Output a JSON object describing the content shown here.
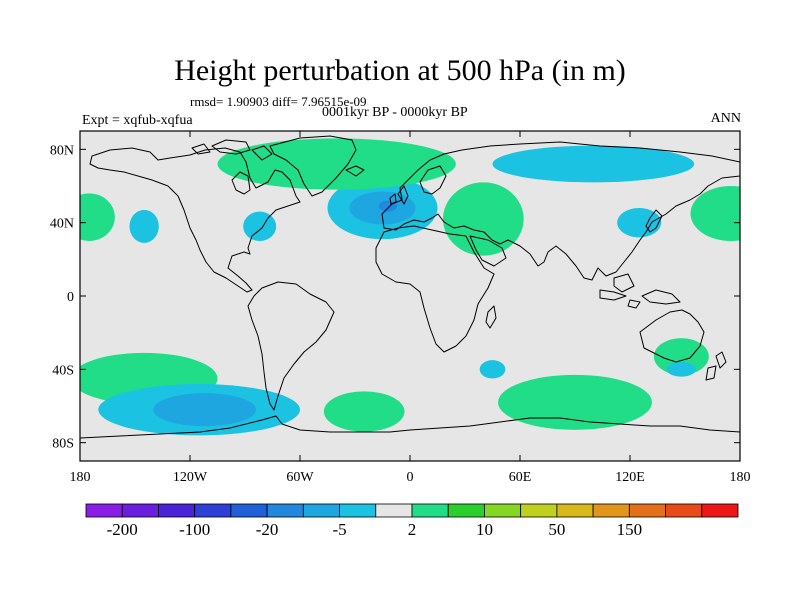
{
  "title": "Height perturbation at 500 hPa (in m)",
  "stats_text": "rmsd= 1.90903 diff= 7.96515e-09",
  "period": "0001kyr BP - 0000kyr BP",
  "experiment": "Expt = xqfub-xqfua",
  "season": "ANN",
  "lat_labels": [
    {
      "lat": 80,
      "label": "80N"
    },
    {
      "lat": 40,
      "label": "40N"
    },
    {
      "lat": 0,
      "label": "0"
    },
    {
      "lat": -40,
      "label": "40S"
    },
    {
      "lat": -80,
      "label": "80S"
    }
  ],
  "lon_labels": [
    {
      "lon": -180,
      "label": "180"
    },
    {
      "lon": -120,
      "label": "120W"
    },
    {
      "lon": -60,
      "label": "60W"
    },
    {
      "lon": 0,
      "label": "0"
    },
    {
      "lon": 60,
      "label": "60E"
    },
    {
      "lon": 120,
      "label": "120E"
    },
    {
      "lon": 180,
      "label": "180"
    }
  ],
  "colorbar": {
    "colors": [
      "#8a1de8",
      "#6a1fe0",
      "#4a23d8",
      "#2c3fd6",
      "#1f5fd8",
      "#2288dd",
      "#1ea6e0",
      "#1cc2e2",
      "#e6e6e6",
      "#22dd88",
      "#2bcf2b",
      "#86d624",
      "#c0d01e",
      "#d8b81a",
      "#e0961a",
      "#e4701a",
      "#e84a18",
      "#ec1818"
    ],
    "labels": [
      {
        "after_box": 1,
        "text": "-200"
      },
      {
        "after_box": 3,
        "text": "-100"
      },
      {
        "after_box": 5,
        "text": "-20"
      },
      {
        "after_box": 7,
        "text": "-5"
      },
      {
        "after_box": 9,
        "text": "2"
      },
      {
        "after_box": 11,
        "text": "10"
      },
      {
        "after_box": 13,
        "text": "50"
      },
      {
        "after_box": 15,
        "text": "150"
      }
    ]
  },
  "colors": {
    "land_sea_fill": "#e6e6e6",
    "weak_positive": "#22dd88",
    "positive": "#2bcf2b",
    "weak_negative": "#1cc2e2",
    "negative": "#1ea6e0",
    "strong_negative": "#2288dd"
  },
  "anomalies": [
    {
      "id": "atlantic-low",
      "center": [
        -15,
        48
      ],
      "radius": [
        30,
        17
      ],
      "level": "weak_negative"
    },
    {
      "id": "atlantic-low-core",
      "center": [
        -15,
        48
      ],
      "radius": [
        18,
        9
      ],
      "level": "negative"
    },
    {
      "id": "atlantic-low-innermost",
      "center": [
        -12,
        49
      ],
      "radius": [
        5,
        3
      ],
      "level": "strong_negative"
    },
    {
      "id": "greenland-high",
      "center": [
        -40,
        72
      ],
      "radius": [
        65,
        14
      ],
      "level": "weak_positive"
    },
    {
      "id": "europe-high",
      "center": [
        40,
        42
      ],
      "radius": [
        22,
        20
      ],
      "level": "weak_positive"
    },
    {
      "id": "siberia-low",
      "center": [
        100,
        72
      ],
      "radius": [
        55,
        10
      ],
      "level": "weak_negative"
    },
    {
      "id": "east-asia-low",
      "center": [
        125,
        40
      ],
      "radius": [
        12,
        8
      ],
      "level": "weak_negative"
    },
    {
      "id": "pacific-high",
      "center": [
        175,
        45
      ],
      "radius": [
        22,
        15
      ],
      "level": "weak_positive"
    },
    {
      "id": "pacific-high-west-edge",
      "center": [
        -175,
        43
      ],
      "radius": [
        14,
        13
      ],
      "level": "weak_positive"
    },
    {
      "id": "north-pacific-low",
      "center": [
        -145,
        38
      ],
      "radius": [
        8,
        9
      ],
      "level": "weak_negative"
    },
    {
      "id": "us-low",
      "center": [
        -82,
        38
      ],
      "radius": [
        9,
        8
      ],
      "level": "weak_negative"
    },
    {
      "id": "south-pacific-high",
      "center": [
        -145,
        -45
      ],
      "radius": [
        40,
        14
      ],
      "level": "weak_positive"
    },
    {
      "id": "south-pacific-low",
      "center": [
        -115,
        -62
      ],
      "radius": [
        55,
        14
      ],
      "level": "weak_negative"
    },
    {
      "id": "south-pacific-low-core",
      "center": [
        -112,
        -62
      ],
      "radius": [
        28,
        9
      ],
      "level": "negative"
    },
    {
      "id": "south-atlantic-high",
      "center": [
        -25,
        -63
      ],
      "radius": [
        22,
        11
      ],
      "level": "weak_positive"
    },
    {
      "id": "indian-ocean-low",
      "center": [
        45,
        -40
      ],
      "radius": [
        7,
        5
      ],
      "level": "weak_negative"
    },
    {
      "id": "indian-ocean-high",
      "center": [
        90,
        -58
      ],
      "radius": [
        42,
        15
      ],
      "level": "weak_positive"
    },
    {
      "id": "australia-high",
      "center": [
        148,
        -33
      ],
      "radius": [
        15,
        10
      ],
      "level": "weak_positive"
    },
    {
      "id": "tasman-low",
      "center": [
        148,
        -40
      ],
      "radius": [
        8,
        4
      ],
      "level": "weak_negative"
    }
  ]
}
